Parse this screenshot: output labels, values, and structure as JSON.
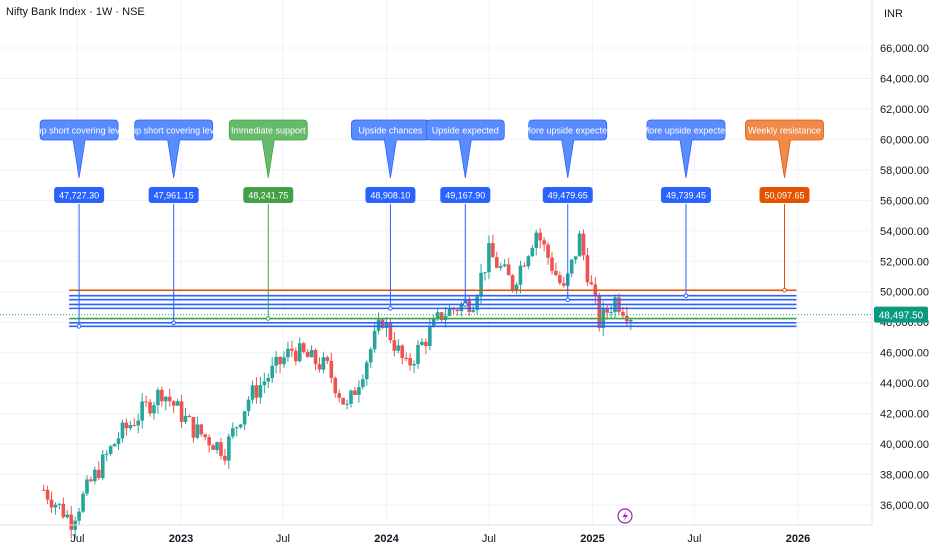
{
  "header": {
    "title": "Nifty Bank Index · 1W · NSE",
    "currency": "INR"
  },
  "colors": {
    "up": "#26a69a",
    "down": "#ef5350",
    "level_blue": "#2962ff",
    "level_orange": "#e65100",
    "support_green": "#43a047",
    "callout_blue": "#5b8cff",
    "callout_green": "#66bb6a",
    "callout_orange": "#ef8a4a"
  },
  "chart_data": {
    "type": "candlestick",
    "title": "Nifty Bank Index · 1W · NSE",
    "ylabel": "INR",
    "ylim": [
      35000,
      67500
    ],
    "y_ticks": [
      "36,000.00",
      "38,000.00",
      "40,000.00",
      "42,000.00",
      "44,000.00",
      "46,000.00",
      "48,000.00",
      "50,000.00",
      "52,000.00",
      "54,000.00",
      "56,000.00",
      "58,000.00",
      "60,000.00",
      "62,000.00",
      "64,000.00",
      "66,000.00"
    ],
    "x_ticks": [
      {
        "label": "Jul",
        "date": "2022-07-01",
        "bold": false
      },
      {
        "label": "2023",
        "date": "2023-01-01",
        "bold": true
      },
      {
        "label": "Jul",
        "date": "2023-07-01",
        "bold": false
      },
      {
        "label": "2024",
        "date": "2024-01-01",
        "bold": true
      },
      {
        "label": "Jul",
        "date": "2024-07-01",
        "bold": false
      },
      {
        "label": "2025",
        "date": "2025-01-01",
        "bold": true
      },
      {
        "label": "Jul",
        "date": "2025-07-01",
        "bold": false
      },
      {
        "label": "2026",
        "date": "2026-01-01",
        "bold": true
      }
    ],
    "last_price": 48497.5,
    "last_price_label": "48,497.50",
    "series_anchors": [
      {
        "date": "2022-05-02",
        "close": 37000
      },
      {
        "date": "2022-06-20",
        "close": 35000
      },
      {
        "date": "2022-07-25",
        "close": 37500
      },
      {
        "date": "2022-09-12",
        "close": 40500
      },
      {
        "date": "2022-11-28",
        "close": 43500
      },
      {
        "date": "2023-01-23",
        "close": 41000
      },
      {
        "date": "2023-03-20",
        "close": 39600
      },
      {
        "date": "2023-05-01",
        "close": 43000
      },
      {
        "date": "2023-07-17",
        "close": 46200
      },
      {
        "date": "2023-09-18",
        "close": 45000
      },
      {
        "date": "2023-10-23",
        "close": 42300
      },
      {
        "date": "2023-12-25",
        "close": 48200
      },
      {
        "date": "2024-02-05",
        "close": 45000
      },
      {
        "date": "2024-04-08",
        "close": 48500
      },
      {
        "date": "2024-06-03",
        "close": 49500
      },
      {
        "date": "2024-07-01",
        "close": 52500
      },
      {
        "date": "2024-08-12",
        "close": 50500
      },
      {
        "date": "2024-09-23",
        "close": 54000
      },
      {
        "date": "2024-11-11",
        "close": 50000
      },
      {
        "date": "2024-12-09",
        "close": 53500
      },
      {
        "date": "2025-01-13",
        "close": 48000
      },
      {
        "date": "2025-02-10",
        "close": 49500
      },
      {
        "date": "2025-03-10",
        "close": 48497.5
      }
    ],
    "levels": [
      {
        "value": 50097.65,
        "color": "orange"
      },
      {
        "value": 49739.45,
        "color": "blue"
      },
      {
        "value": 49479.65,
        "color": "blue"
      },
      {
        "value": 49167.9,
        "color": "blue"
      },
      {
        "value": 48908.1,
        "color": "blue"
      },
      {
        "value": 48241.75,
        "color": "green"
      },
      {
        "value": 47961.15,
        "color": "blue"
      },
      {
        "value": 47727.3,
        "color": "blue"
      }
    ],
    "annotations": [
      {
        "label": "Imp short covering level",
        "price": "47,727.30",
        "value": 47727.3,
        "date": "2022-07-04",
        "color": "blue"
      },
      {
        "label": "Imp short covering level",
        "price": "47,961.15",
        "value": 47961.15,
        "date": "2022-12-19",
        "color": "blue"
      },
      {
        "label": "Immediate support",
        "price": "48,241.75",
        "value": 48241.75,
        "date": "2023-06-05",
        "color": "green"
      },
      {
        "label": "Upside chances",
        "price": "48,908.10",
        "value": 48908.1,
        "date": "2024-01-08",
        "color": "blue"
      },
      {
        "label": "Upside expected",
        "price": "49,167.90",
        "value": 49167.9,
        "date": "2024-05-20",
        "color": "blue"
      },
      {
        "label": "More upside expected",
        "price": "49,479.65",
        "value": 49479.65,
        "date": "2024-11-18",
        "color": "blue"
      },
      {
        "label": "More upside expected",
        "price": "49,739.45",
        "value": 49739.45,
        "date": "2025-06-16",
        "color": "blue"
      },
      {
        "label": "Weekly resistance",
        "price": "50,097.65",
        "value": 50097.65,
        "date": "2025-12-08",
        "color": "orange"
      }
    ]
  }
}
